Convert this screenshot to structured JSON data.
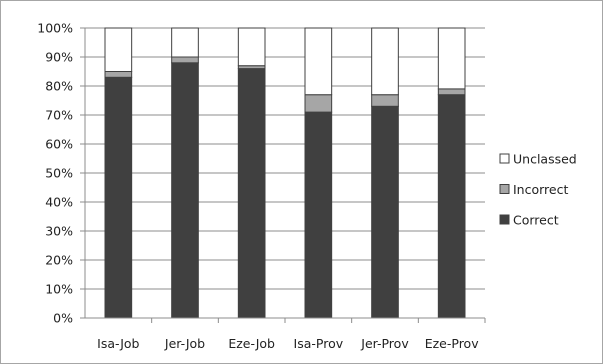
{
  "chart_data": {
    "type": "bar",
    "stacked": true,
    "percent_stacked": true,
    "title": "",
    "xlabel": "",
    "ylabel": "",
    "categories": [
      "Isa-Job",
      "Jer-Job",
      "Eze-Job",
      "Isa-Prov",
      "Jer-Prov",
      "Eze-Prov"
    ],
    "series": [
      {
        "name": "Correct",
        "values": [
          83,
          88,
          86,
          71,
          73,
          77
        ],
        "color": "#404040"
      },
      {
        "name": "Incorrect",
        "values": [
          2,
          2,
          1,
          6,
          4,
          2
        ],
        "color": "#a6a6a6"
      },
      {
        "name": "Unclassed",
        "values": [
          15,
          10,
          13,
          23,
          23,
          21
        ],
        "color": "#ffffff"
      }
    ],
    "ylim": [
      0,
      100
    ],
    "yticks": [
      "0%",
      "10%",
      "20%",
      "30%",
      "40%",
      "50%",
      "60%",
      "70%",
      "80%",
      "90%",
      "100%"
    ],
    "grid": true,
    "legend_position": "right",
    "legend_order": [
      "Unclassed",
      "Incorrect",
      "Correct"
    ]
  }
}
